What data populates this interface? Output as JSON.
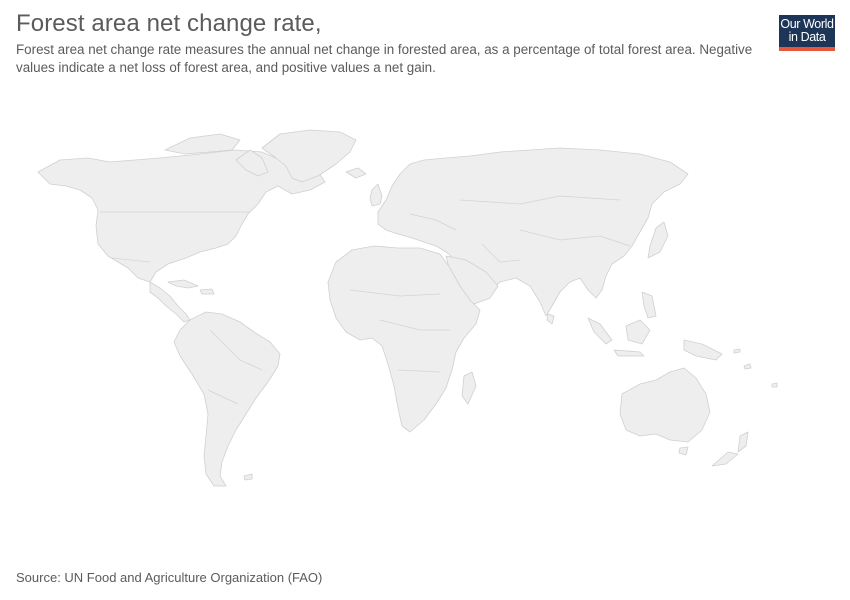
{
  "header": {
    "title": "Forest area net change rate,",
    "subtitle": "Forest area net change rate measures the annual net change in forested area, as a percentage of total forest area. Negative values indicate a net loss of forest area, and positive values a net gain."
  },
  "logo": {
    "line1": "Our World",
    "line2": "in Data",
    "background": "#1d3557",
    "accent": "#e6563a"
  },
  "map": {
    "land_color": "#eeeeee",
    "border_color": "#d0d0d0"
  },
  "footer": {
    "source": "Source: UN Food and Agriculture Organization (FAO)"
  }
}
